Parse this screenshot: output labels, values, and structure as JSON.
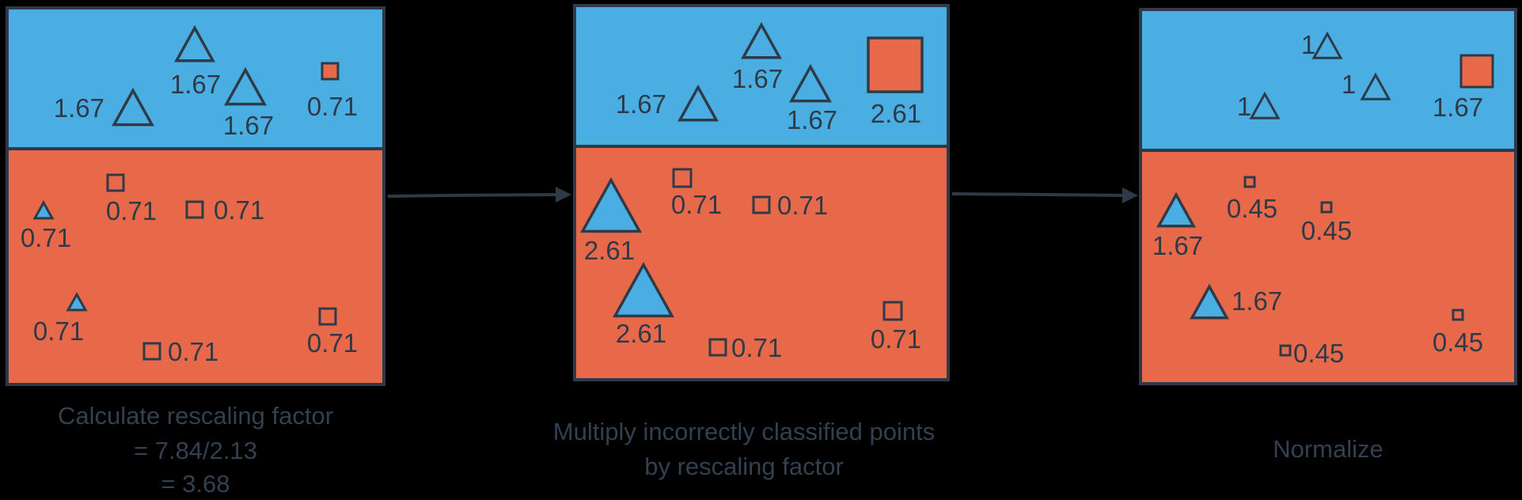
{
  "colors": {
    "blue": "#4baee3",
    "red": "#e8684a",
    "outline": "#2f3a48",
    "caption": "#33404f"
  },
  "panels": [
    {
      "id": "panel-1",
      "caption": [
        "Calculate rescaling factor",
        "= 7.84/2.13",
        "= 3.68"
      ],
      "points": [
        {
          "shape": "triangle",
          "fill": "blue",
          "open": true,
          "label": "1.67"
        },
        {
          "shape": "triangle",
          "fill": "blue",
          "open": true,
          "label": "1.67"
        },
        {
          "shape": "triangle",
          "fill": "blue",
          "open": true,
          "label": "1.67"
        },
        {
          "shape": "square",
          "fill": "red",
          "open": false,
          "label": "0.71"
        },
        {
          "shape": "triangle",
          "fill": "blue",
          "open": false,
          "label": "0.71"
        },
        {
          "shape": "square",
          "fill": "red",
          "open": true,
          "label": "0.71"
        },
        {
          "shape": "square",
          "fill": "red",
          "open": true,
          "label": "0.71"
        },
        {
          "shape": "triangle",
          "fill": "blue",
          "open": false,
          "label": "0.71"
        },
        {
          "shape": "square",
          "fill": "red",
          "open": true,
          "label": "0.71"
        },
        {
          "shape": "square",
          "fill": "red",
          "open": true,
          "label": "0.71"
        }
      ]
    },
    {
      "id": "panel-2",
      "caption": [
        "Multiply incorrectly classified points",
        "by rescaling factor"
      ],
      "points": [
        {
          "shape": "triangle",
          "fill": "blue",
          "open": true,
          "label": "1.67"
        },
        {
          "shape": "triangle",
          "fill": "blue",
          "open": true,
          "label": "1.67"
        },
        {
          "shape": "triangle",
          "fill": "blue",
          "open": true,
          "label": "1.67"
        },
        {
          "shape": "square",
          "fill": "red",
          "open": false,
          "label": "2.61"
        },
        {
          "shape": "triangle",
          "fill": "blue",
          "open": false,
          "label": "2.61"
        },
        {
          "shape": "square",
          "fill": "red",
          "open": true,
          "label": "0.71"
        },
        {
          "shape": "square",
          "fill": "red",
          "open": true,
          "label": "0.71"
        },
        {
          "shape": "triangle",
          "fill": "blue",
          "open": false,
          "label": "2.61"
        },
        {
          "shape": "square",
          "fill": "red",
          "open": true,
          "label": "0.71"
        },
        {
          "shape": "square",
          "fill": "red",
          "open": true,
          "label": "0.71"
        }
      ]
    },
    {
      "id": "panel-3",
      "caption": [
        "Normalize"
      ],
      "points": [
        {
          "shape": "triangle",
          "fill": "blue",
          "open": true,
          "label": "1"
        },
        {
          "shape": "triangle",
          "fill": "blue",
          "open": true,
          "label": "1"
        },
        {
          "shape": "triangle",
          "fill": "blue",
          "open": true,
          "label": "1"
        },
        {
          "shape": "square",
          "fill": "red",
          "open": false,
          "label": "1.67"
        },
        {
          "shape": "triangle",
          "fill": "blue",
          "open": false,
          "label": "1.67"
        },
        {
          "shape": "square",
          "fill": "red",
          "open": true,
          "label": "0.45"
        },
        {
          "shape": "square",
          "fill": "red",
          "open": true,
          "label": "0.45"
        },
        {
          "shape": "triangle",
          "fill": "blue",
          "open": false,
          "label": "1.67"
        },
        {
          "shape": "square",
          "fill": "red",
          "open": true,
          "label": "0.45"
        },
        {
          "shape": "square",
          "fill": "red",
          "open": true,
          "label": "0.45"
        }
      ]
    }
  ]
}
